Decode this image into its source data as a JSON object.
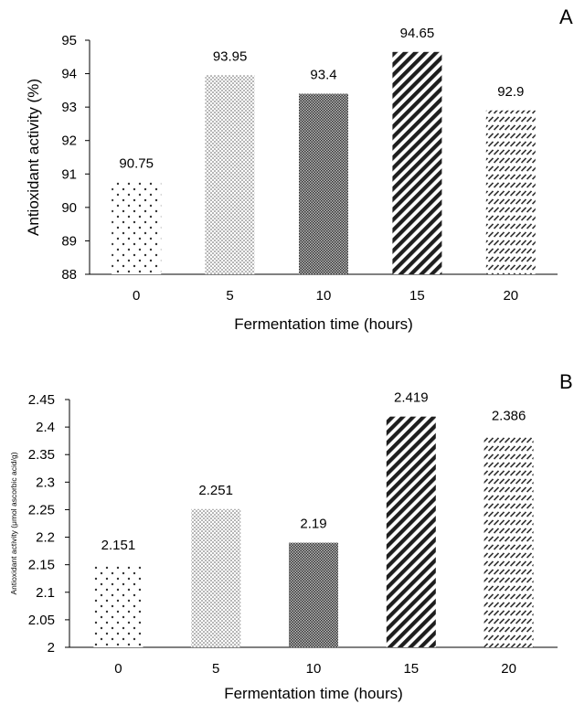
{
  "chart_data": [
    {
      "type": "bar",
      "panel_label": "A",
      "title": "",
      "categories": [
        "0",
        "5",
        "10",
        "15",
        "20"
      ],
      "values": [
        90.75,
        93.95,
        93.4,
        94.65,
        92.9
      ],
      "data_labels": [
        "90.75",
        "93.95",
        "93.4",
        "94.65",
        "92.9"
      ],
      "xlabel": "Fermentation time (hours)",
      "ylabel": "Antioxidant activity (%)",
      "ylim": [
        88,
        95
      ],
      "yticks": [
        "88",
        "89",
        "90",
        "91",
        "92",
        "93",
        "94",
        "95"
      ],
      "grid": false,
      "legend": "none",
      "patterns": [
        "sparse-dots",
        "fine-dots",
        "checker",
        "wide-diagonal",
        "dashed-diagonal"
      ]
    },
    {
      "type": "bar",
      "panel_label": "B",
      "title": "",
      "categories": [
        "0",
        "5",
        "10",
        "15",
        "20"
      ],
      "values": [
        2.151,
        2.251,
        2.19,
        2.419,
        2.386
      ],
      "data_labels": [
        "2.151",
        "2.251",
        "2.19",
        "2.419",
        "2.386"
      ],
      "xlabel": "Fermentation time (hours)",
      "ylabel": "Antioxidant activity (μmol ascorbic acid/g)",
      "ylim": [
        2,
        2.45
      ],
      "yticks": [
        "2",
        "2.05",
        "2.1",
        "2.15",
        "2.2",
        "2.25",
        "2.3",
        "2.35",
        "2.4",
        "2.45"
      ],
      "grid": false,
      "legend": "none",
      "patterns": [
        "sparse-dots",
        "fine-dots",
        "checker",
        "wide-diagonal",
        "dashed-diagonal"
      ]
    }
  ],
  "colors": {
    "axis": "#000000",
    "mark": "#222222",
    "background": "#ffffff"
  }
}
